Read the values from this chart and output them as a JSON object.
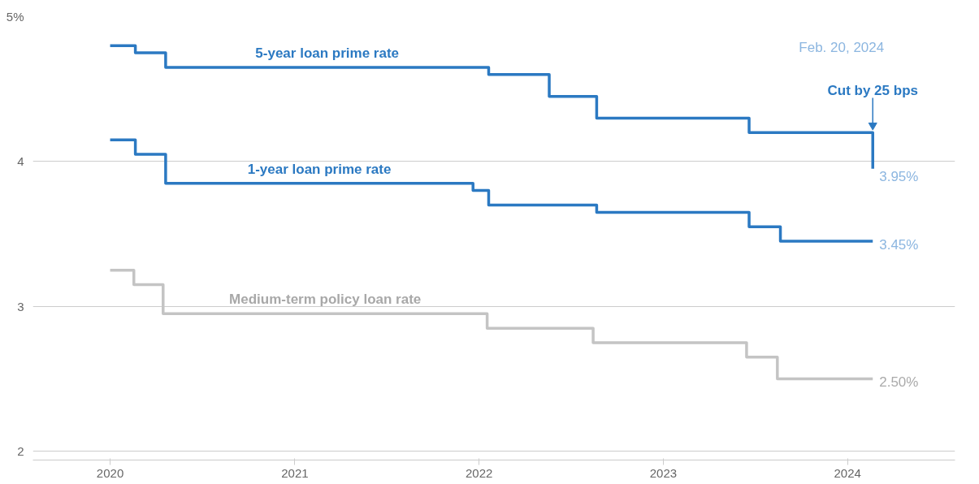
{
  "chart_data": {
    "type": "step",
    "series": [
      {
        "name": "5-year loan prime rate",
        "color": "#2b79c2",
        "x": [
          "2020-01-01",
          "2020-02-20",
          "2020-04-20",
          "2022-01-20",
          "2022-05-20",
          "2022-08-22",
          "2023-06-20",
          "2024-02-20"
        ],
        "values": [
          4.8,
          4.75,
          4.65,
          4.6,
          4.45,
          4.3,
          4.2,
          3.95
        ]
      },
      {
        "name": "1-year loan prime rate",
        "color": "#2b79c2",
        "x": [
          "2020-01-01",
          "2020-02-20",
          "2020-04-20",
          "2021-12-20",
          "2022-01-20",
          "2022-08-22",
          "2023-06-20",
          "2023-08-21",
          "2024-02-20"
        ],
        "values": [
          4.15,
          4.05,
          3.85,
          3.8,
          3.7,
          3.65,
          3.55,
          3.45,
          3.45
        ]
      },
      {
        "name": "Medium-term policy loan rate",
        "color": "#c4c4c4",
        "x": [
          "2020-01-01",
          "2020-02-17",
          "2020-04-15",
          "2022-01-17",
          "2022-08-15",
          "2023-06-15",
          "2023-08-15",
          "2024-02-20"
        ],
        "values": [
          3.25,
          3.15,
          2.95,
          2.85,
          2.75,
          2.65,
          2.5,
          2.5
        ]
      }
    ],
    "annotations": [
      "Feb. 20, 2024",
      {
        "text": "Cut by 25 bps",
        "x": "2024-02-20",
        "y": 4.2
      },
      {
        "text": "3.95%",
        "x": "2024-02-20",
        "y": 3.95
      },
      {
        "text": "3.45%",
        "x": "2024-02-20",
        "y": 3.45
      },
      {
        "text": "2.50%",
        "x": "2024-02-20",
        "y": 2.5
      }
    ],
    "xlim": [
      "2019-08-01",
      "2024-08-01"
    ],
    "xticks": [
      "2020",
      "2021",
      "2022",
      "2023",
      "2024"
    ],
    "ylim": [
      1.94,
      5
    ],
    "yticks": [
      2,
      3,
      4,
      {
        "value": 5,
        "label": "5%"
      }
    ],
    "grid": "y",
    "line_style": "solid",
    "marker": "none"
  }
}
